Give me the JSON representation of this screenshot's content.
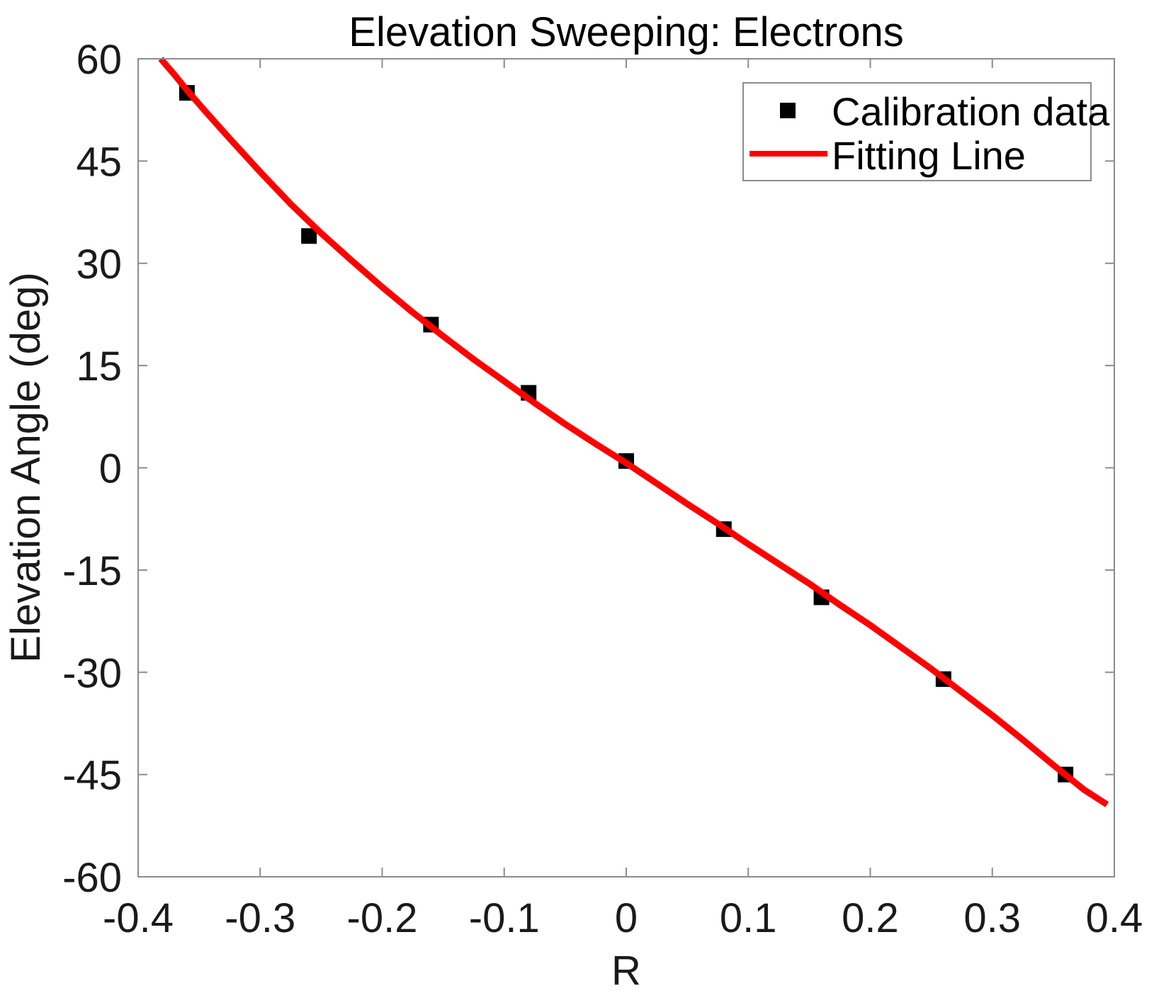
{
  "chart_data": {
    "type": "scatter",
    "title": "Elevation Sweeping: Electrons",
    "xlabel": "R",
    "ylabel": "Elevation Angle (deg)",
    "xlim": [
      -0.4,
      0.4
    ],
    "ylim": [
      -60,
      60
    ],
    "grid": false,
    "box": true,
    "x_ticks": [
      -0.4,
      -0.3,
      -0.2,
      -0.1,
      0,
      0.1,
      0.2,
      0.3,
      0.4
    ],
    "x_tick_labels": [
      "-0.4",
      "-0.3",
      "-0.2",
      "-0.1",
      "0",
      "0.1",
      "0.2",
      "0.3",
      "0.4"
    ],
    "y_ticks": [
      60,
      45,
      30,
      15,
      0,
      -15,
      -30,
      -45,
      -60
    ],
    "y_tick_labels": [
      "60",
      "45",
      "30",
      "15",
      "0",
      "-15",
      "-30",
      "-45",
      "-60"
    ],
    "axis_color": "#8c8c8c",
    "text_color": "#1a1a1a",
    "series": [
      {
        "name": "Calibration data",
        "type": "scatter",
        "marker": "square",
        "color": "#000000",
        "x": [
          -0.36,
          -0.26,
          -0.16,
          -0.08,
          0.0,
          0.08,
          0.16,
          0.26,
          0.36
        ],
        "y": [
          55,
          34,
          21,
          11,
          1,
          -9,
          -19,
          -31,
          -45
        ]
      },
      {
        "name": "Fitting Line",
        "type": "line",
        "color": "#ff0000",
        "points": [
          [
            -0.3815,
            60.0
          ],
          [
            -0.37,
            57.6
          ],
          [
            -0.36,
            55.4
          ],
          [
            -0.345,
            52.3
          ],
          [
            -0.325,
            48.3
          ],
          [
            -0.3,
            43.4
          ],
          [
            -0.275,
            38.7
          ],
          [
            -0.25,
            34.4
          ],
          [
            -0.225,
            30.4
          ],
          [
            -0.2,
            26.5
          ],
          [
            -0.175,
            22.8
          ],
          [
            -0.15,
            19.3
          ],
          [
            -0.125,
            15.9
          ],
          [
            -0.1,
            12.7
          ],
          [
            -0.075,
            9.5
          ],
          [
            -0.05,
            6.4
          ],
          [
            -0.025,
            3.5
          ],
          [
            0.0,
            0.7
          ],
          [
            0.025,
            -2.3
          ],
          [
            0.05,
            -5.3
          ],
          [
            0.075,
            -8.2
          ],
          [
            0.1,
            -11.2
          ],
          [
            0.125,
            -14.1
          ],
          [
            0.15,
            -17.0
          ],
          [
            0.175,
            -20.1
          ],
          [
            0.2,
            -23.1
          ],
          [
            0.225,
            -26.3
          ],
          [
            0.25,
            -29.5
          ],
          [
            0.275,
            -32.9
          ],
          [
            0.3,
            -36.3
          ],
          [
            0.325,
            -39.9
          ],
          [
            0.35,
            -43.6
          ],
          [
            0.375,
            -47.2
          ],
          [
            0.394,
            -49.4
          ]
        ]
      }
    ],
    "legend": {
      "position": "top-right",
      "entries": [
        {
          "label": "Calibration data",
          "marker": "black-square"
        },
        {
          "label": "Fitting Line",
          "marker": "red-line"
        }
      ]
    }
  }
}
